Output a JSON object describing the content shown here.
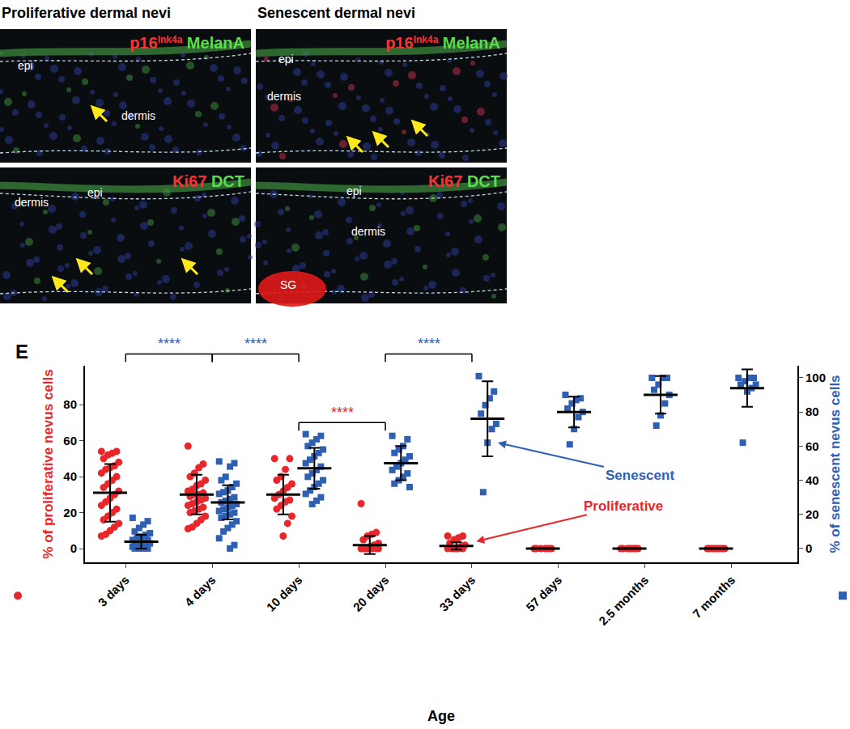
{
  "figure_panels": {
    "columns": [
      {
        "title": "Proliferative dermal nevi"
      },
      {
        "title": "Senescent dermal nevi"
      }
    ],
    "images": [
      {
        "column": 0,
        "row": 0,
        "stains": [
          {
            "text": "p16",
            "sup": "Ink4a",
            "color": "#ff3030"
          },
          {
            "text": "MelanA",
            "color": "#5cdc4c"
          }
        ],
        "regions": [
          "epi",
          "dermis"
        ]
      },
      {
        "column": 1,
        "row": 0,
        "stains": [
          {
            "text": "p16",
            "sup": "Ink4a",
            "color": "#ff3030"
          },
          {
            "text": "MelanA",
            "color": "#5cdc4c"
          }
        ],
        "regions": [
          "epi",
          "dermis"
        ]
      },
      {
        "column": 0,
        "row": 1,
        "stains": [
          {
            "text": "Ki67",
            "color": "#ff3030"
          },
          {
            "text": "DCT",
            "color": "#5cdc4c"
          }
        ],
        "regions": [
          "epi",
          "dermis"
        ]
      },
      {
        "column": 1,
        "row": 1,
        "stains": [
          {
            "text": "Ki67",
            "color": "#ff3030"
          },
          {
            "text": "DCT",
            "color": "#5cdc4c"
          }
        ],
        "regions": [
          "epi",
          "dermis",
          "SG"
        ]
      }
    ]
  },
  "chart_data": {
    "type": "scatter",
    "panel_label": "E",
    "x_label": "Age",
    "y_label": "% of proliferative nevus cells",
    "y2_label": "% of senescent nevus cells",
    "categories": [
      "3 days",
      "4 days",
      "10 days",
      "20 days",
      "33 days",
      "57 days",
      "2.5 months",
      "7 months"
    ],
    "ylim": [
      -7.6,
      101.6
    ],
    "yticks": [
      0,
      20,
      40,
      60,
      80
    ],
    "y2lim": [
      -8.1,
      107.1
    ],
    "y2ticks": [
      0,
      20,
      40,
      60,
      80,
      100
    ],
    "grid": false,
    "series": [
      {
        "name": "Proliferative",
        "color": "#e8262c",
        "marker": "circle",
        "axis": "y",
        "values": [
          [
            54,
            54,
            53,
            52,
            50,
            48,
            46,
            45,
            44,
            42,
            40,
            38,
            36,
            34,
            32,
            30,
            28,
            26,
            24,
            22,
            20,
            18,
            16,
            14,
            12,
            10,
            8,
            7
          ],
          [
            57,
            47,
            45,
            42,
            40,
            38,
            36,
            35,
            33,
            32,
            31,
            30,
            30,
            29,
            28,
            27,
            26,
            25,
            24,
            23,
            22,
            21,
            20,
            18,
            16,
            14,
            12,
            11
          ],
          [
            50,
            50,
            44,
            40,
            38,
            36,
            34,
            32,
            30,
            28,
            27,
            26,
            24,
            22,
            18,
            14,
            7
          ],
          [
            25,
            9,
            8,
            7,
            5,
            3,
            2,
            1,
            0,
            0,
            0,
            0,
            0,
            0,
            0
          ],
          [
            7,
            7,
            6,
            5,
            3,
            2,
            1,
            0,
            0,
            0,
            0,
            0,
            0
          ],
          [
            0,
            0,
            0,
            0,
            0,
            0,
            0
          ],
          [
            0,
            0,
            0,
            0,
            0,
            0,
            0,
            0
          ],
          [
            0,
            0,
            0,
            0,
            0,
            0,
            0,
            0,
            0
          ]
        ],
        "mean": [
          31,
          30,
          30,
          2,
          1.5,
          0,
          0,
          0
        ],
        "sd": [
          16,
          11,
          11,
          5,
          2,
          0,
          0,
          0
        ]
      },
      {
        "name": "Senescent",
        "color": "#2f5fb3",
        "marker": "square",
        "axis": "y2",
        "values": [
          [
            18,
            16,
            14,
            12,
            10,
            9,
            8,
            7,
            6,
            5,
            5,
            4,
            4,
            3,
            3,
            2,
            2,
            1,
            1,
            0,
            0,
            0,
            0
          ],
          [
            51,
            50,
            48,
            42,
            40,
            38,
            36,
            34,
            33,
            32,
            30,
            29,
            28,
            27,
            26,
            25,
            24,
            23,
            22,
            21,
            20,
            19,
            18,
            16,
            14,
            12,
            10,
            6,
            2,
            0
          ],
          [
            67,
            66,
            64,
            62,
            60,
            58,
            56,
            54,
            52,
            50,
            48,
            46,
            44,
            42,
            40,
            38,
            36,
            34,
            32,
            30,
            28,
            26
          ],
          [
            66,
            64,
            60,
            58,
            56,
            54,
            52,
            50,
            48,
            46,
            44,
            42,
            40,
            38,
            36
          ],
          [
            101,
            92,
            88,
            84,
            79,
            73,
            70,
            62,
            33
          ],
          [
            90,
            88,
            87,
            85,
            82,
            80,
            77,
            70,
            61
          ],
          [
            100,
            100,
            100,
            96,
            93,
            90,
            85,
            78,
            72
          ],
          [
            100,
            100,
            100,
            98,
            96,
            96,
            94,
            92,
            62
          ]
        ],
        "mean": [
          4,
          27,
          47,
          50,
          76,
          80,
          90,
          94
        ],
        "sd": [
          4,
          10,
          12,
          10,
          22,
          9,
          11,
          11
        ]
      }
    ],
    "significance": [
      {
        "from": "3 days",
        "to": "4 days",
        "text": "****",
        "color": "#2f5fb3",
        "axis": "y2",
        "y": 114
      },
      {
        "from": "4 days",
        "to": "10 days",
        "text": "****",
        "color": "#2f5fb3",
        "axis": "y2",
        "y": 114
      },
      {
        "from": "20 days",
        "to": "33 days",
        "text": "****",
        "color": "#2f5fb3",
        "axis": "y2",
        "y": 114
      },
      {
        "from": "10 days",
        "to": "20 days",
        "text": "****",
        "color": "#e8262c",
        "axis": "y",
        "y": 70
      }
    ]
  }
}
